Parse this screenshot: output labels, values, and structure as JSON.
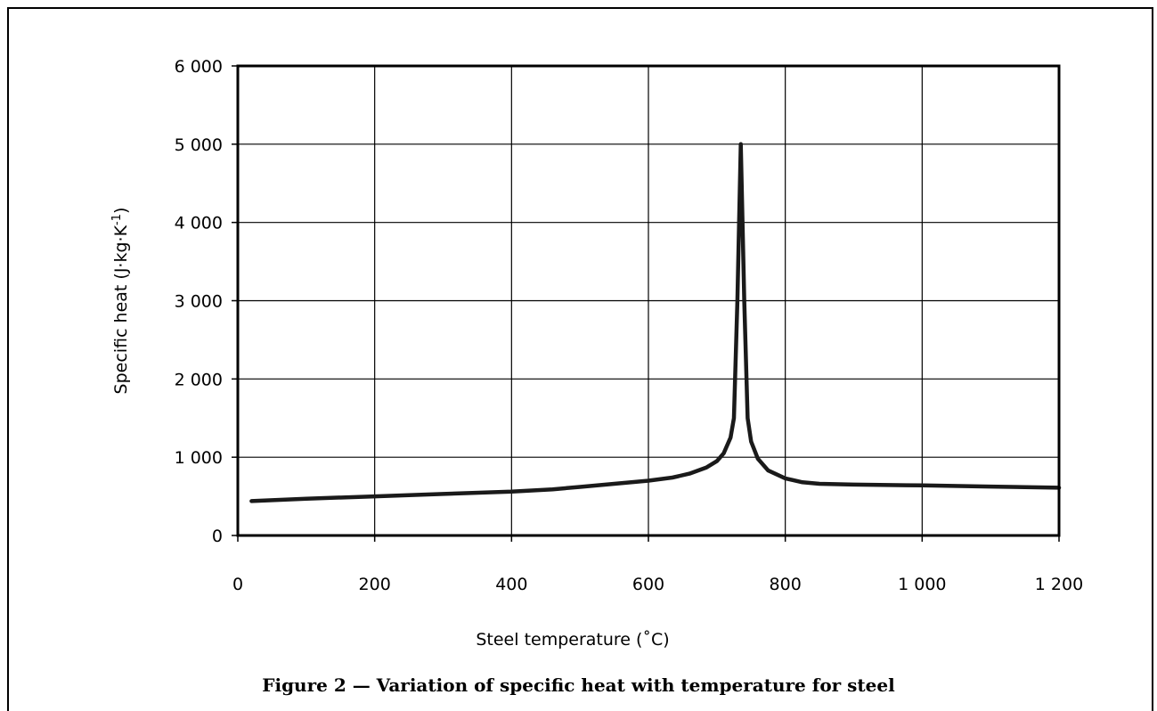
{
  "figure_caption": "Figure 2 — Variation of specific heat with temperature for steel",
  "chart_data": {
    "type": "line",
    "title": "",
    "xlabel": "Steel temperature (˚C)",
    "ylabel_main": "Specific heat (J·kg·K",
    "ylabel_sup": "-1",
    "ylabel_close": ")",
    "xlim": [
      0,
      1200
    ],
    "ylim": [
      0,
      6000
    ],
    "xticks": [
      0,
      200,
      400,
      600,
      800,
      1000,
      1200
    ],
    "xtick_labels": [
      "0",
      "200",
      "400",
      "600",
      "800",
      "1 000",
      "1 200"
    ],
    "yticks": [
      0,
      1000,
      2000,
      3000,
      4000,
      5000,
      6000
    ],
    "ytick_labels": [
      "0",
      "1 000",
      "2 000",
      "3 000",
      "4 000",
      "5 000",
      "6 000"
    ],
    "grid": true,
    "series": [
      {
        "x": [
          20,
          100,
          200,
          300,
          400,
          460,
          500,
          550,
          600,
          635,
          660,
          685,
          700,
          710,
          720,
          725,
          730,
          735,
          740,
          745,
          750,
          760,
          775,
          800,
          825,
          850,
          900,
          1000,
          1100,
          1200
        ],
        "y": [
          440,
          470,
          500,
          530,
          560,
          590,
          620,
          660,
          700,
          740,
          790,
          870,
          950,
          1050,
          1250,
          1500,
          3000,
          5000,
          3000,
          1500,
          1200,
          980,
          830,
          730,
          680,
          660,
          650,
          640,
          625,
          610
        ]
      }
    ]
  }
}
